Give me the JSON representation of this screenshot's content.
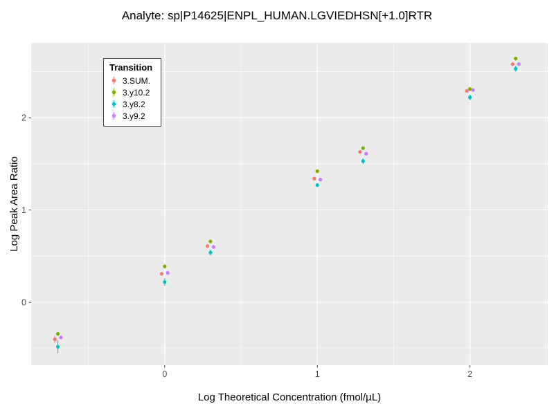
{
  "chart_data": {
    "type": "scatter",
    "title": "Analyte: sp|P14625|ENPL_HUMAN.LGVIEDHSN[+1.0]RTR",
    "xlabel": "Log Theoretical Concentration (fmol/µL)",
    "ylabel": "Log Peak Area Ratio",
    "legend_title": "Transition",
    "legend_position": "top-left-inside",
    "grid": true,
    "panel_color": "#EBEBEB",
    "grid_color": "#FFFFFF",
    "tick_color": "#333333",
    "tick_label_color": "#4D4D4D",
    "xlim": [
      -0.875,
      2.51
    ],
    "ylim": [
      -0.68,
      2.81
    ],
    "x_ticks": [
      {
        "value": 0,
        "label": "0"
      },
      {
        "value": 1,
        "label": "1"
      },
      {
        "value": 2,
        "label": "2"
      }
    ],
    "y_ticks": [
      {
        "value": 0,
        "label": "0"
      },
      {
        "value": 1,
        "label": "1"
      },
      {
        "value": 2,
        "label": "2"
      }
    ],
    "x_minor_ticks": [
      -0.5,
      0.5,
      1.5,
      2.5
    ],
    "y_minor_ticks": [
      -0.5,
      0.5,
      1.5,
      2.5
    ],
    "series": [
      {
        "name": "3.SUM.",
        "color": "#F8766D",
        "x": [
          -0.72,
          -0.02,
          0.28,
          0.98,
          1.28,
          1.98,
          2.28
        ],
        "y": [
          -0.4,
          0.31,
          0.61,
          1.34,
          1.63,
          2.29,
          2.58
        ],
        "yerr": [
          0.04,
          0.02,
          0.02,
          0.02,
          0.02,
          0.02,
          0.02
        ]
      },
      {
        "name": "3.y10.2",
        "color": "#7CAE00",
        "x": [
          -0.7,
          0.0,
          0.3,
          1.0,
          1.3,
          2.0,
          2.3
        ],
        "y": [
          -0.34,
          0.39,
          0.66,
          1.42,
          1.67,
          2.31,
          2.64
        ],
        "yerr": [
          0.02,
          0.02,
          0.02,
          0.02,
          0.02,
          0.02,
          0.02
        ]
      },
      {
        "name": "3.y8.2",
        "color": "#00BFC4",
        "x": [
          -0.7,
          0.0,
          0.3,
          1.0,
          1.3,
          2.0,
          2.3
        ],
        "y": [
          -0.48,
          0.22,
          0.54,
          1.27,
          1.53,
          2.22,
          2.53
        ],
        "yerr": [
          0.07,
          0.04,
          0.03,
          0.02,
          0.03,
          0.03,
          0.03
        ]
      },
      {
        "name": "3.y9.2",
        "color": "#C77CFF",
        "x": [
          -0.68,
          0.02,
          0.32,
          1.02,
          1.32,
          2.02,
          2.32
        ],
        "y": [
          -0.38,
          0.32,
          0.6,
          1.33,
          1.61,
          2.3,
          2.58
        ],
        "yerr": [
          0.02,
          0.02,
          0.02,
          0.02,
          0.02,
          0.02,
          0.02
        ]
      }
    ]
  }
}
